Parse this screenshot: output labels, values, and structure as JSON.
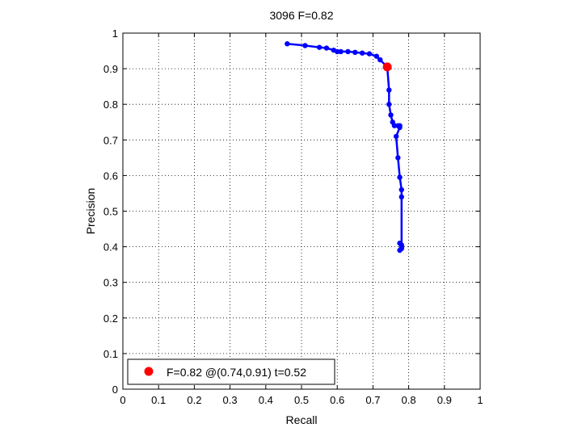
{
  "chart_data": {
    "type": "line",
    "title": "3096 F=0.82",
    "xlabel": "Recall",
    "ylabel": "Precision",
    "xlim": [
      0,
      1
    ],
    "ylim": [
      0,
      1
    ],
    "xticks": [
      0,
      0.1,
      0.2,
      0.3,
      0.4,
      0.5,
      0.6,
      0.7,
      0.8,
      0.9,
      1
    ],
    "yticks": [
      0,
      0.1,
      0.2,
      0.3,
      0.4,
      0.5,
      0.6,
      0.7,
      0.8,
      0.9,
      1
    ],
    "xtick_labels": [
      "0",
      "0.1",
      "0.2",
      "0.3",
      "0.4",
      "0.5",
      "0.6",
      "0.7",
      "0.8",
      "0.9",
      "1"
    ],
    "ytick_labels": [
      "0",
      "0.1",
      "0.2",
      "0.3",
      "0.4",
      "0.5",
      "0.6",
      "0.7",
      "0.8",
      "0.9",
      "1"
    ],
    "grid": true,
    "grid_style": "dotted",
    "legend_position": "bottom-left",
    "series": [
      {
        "color": "#0000ff",
        "marker": "circle",
        "x": [
          0.46,
          0.51,
          0.55,
          0.57,
          0.59,
          0.6,
          0.61,
          0.63,
          0.65,
          0.67,
          0.69,
          0.71,
          0.72,
          0.74,
          0.745,
          0.745,
          0.75,
          0.755,
          0.76,
          0.77,
          0.775,
          0.775,
          0.765,
          0.77,
          0.775,
          0.78,
          0.78,
          0.78,
          0.775,
          0.78,
          0.78,
          0.775
        ],
        "y": [
          0.97,
          0.965,
          0.96,
          0.958,
          0.952,
          0.948,
          0.948,
          0.948,
          0.946,
          0.944,
          0.942,
          0.935,
          0.925,
          0.905,
          0.84,
          0.8,
          0.77,
          0.75,
          0.74,
          0.74,
          0.74,
          0.735,
          0.71,
          0.65,
          0.595,
          0.56,
          0.54,
          0.405,
          0.41,
          0.4,
          0.395,
          0.39
        ]
      }
    ],
    "highlight": {
      "label": "F=0.82 @(0.74,0.91) t=0.52",
      "x": 0.74,
      "y": 0.905,
      "color": "#ff0000"
    }
  }
}
